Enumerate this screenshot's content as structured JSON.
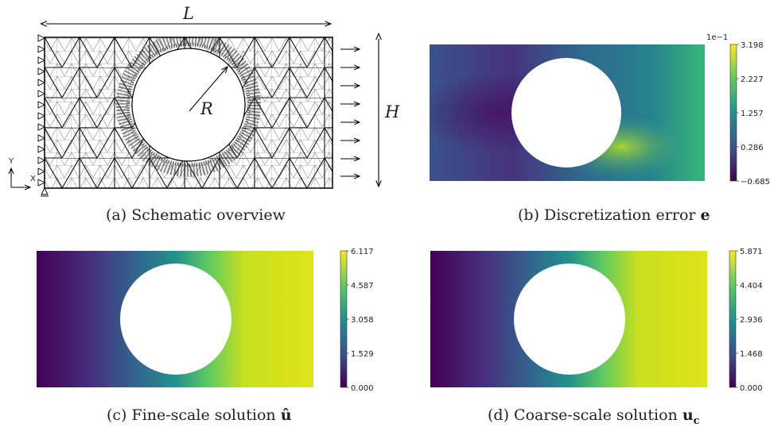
{
  "panel_a": {
    "label_L": "L",
    "label_H": "H",
    "label_R": "R",
    "axis_x": "X",
    "axis_y": "Y",
    "caption_prefix": "(a) Schematic overview",
    "caption_symbol": ""
  },
  "panel_b": {
    "caption_prefix": "(b) Discretization error ",
    "caption_symbol": "e",
    "colorbar": {
      "exponent": "1e−1",
      "ticks": [
        "3.198",
        "2.227",
        "1.257",
        "0.286",
        "−0.685"
      ]
    }
  },
  "panel_c": {
    "caption_prefix": "(c) Fine-scale solution ",
    "caption_symbol": "û",
    "colorbar": {
      "ticks": [
        "6.117",
        "4.587",
        "3.058",
        "1.529",
        "0.000"
      ]
    }
  },
  "panel_d": {
    "caption_prefix": "(d) Coarse-scale solution ",
    "caption_symbol": "u",
    "caption_sub": "c",
    "colorbar": {
      "ticks": [
        "5.871",
        "4.404",
        "2.936",
        "1.468",
        "0.000"
      ]
    }
  },
  "colors": {
    "viridis": [
      "#440154",
      "#3b528b",
      "#21918c",
      "#5ec962",
      "#fde725"
    ]
  }
}
